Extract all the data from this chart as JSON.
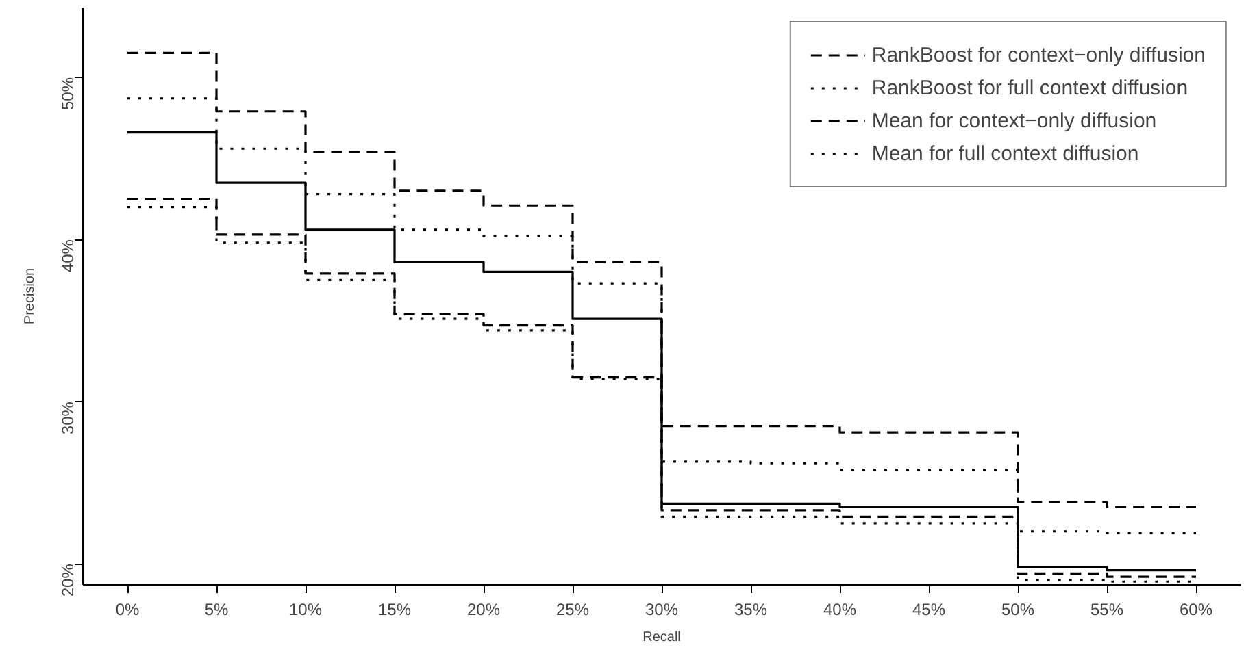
{
  "chart_data": {
    "type": "step",
    "xlabel": "Recall",
    "ylabel": "Precision",
    "x": [
      0,
      5,
      10,
      15,
      20,
      25,
      30,
      35,
      40,
      45,
      50,
      55,
      60
    ],
    "xlim": [
      -2.5,
      62.5
    ],
    "ylim": [
      18.7,
      54.3
    ],
    "xticks": [
      {
        "value": 0,
        "label": "0%"
      },
      {
        "value": 5,
        "label": "5%"
      },
      {
        "value": 10,
        "label": "10%"
      },
      {
        "value": 15,
        "label": "15%"
      },
      {
        "value": 20,
        "label": "20%"
      },
      {
        "value": 25,
        "label": "25%"
      },
      {
        "value": 30,
        "label": "30%"
      },
      {
        "value": 35,
        "label": "35%"
      },
      {
        "value": 40,
        "label": "40%"
      },
      {
        "value": 45,
        "label": "45%"
      },
      {
        "value": 50,
        "label": "50%"
      },
      {
        "value": 55,
        "label": "55%"
      },
      {
        "value": 60,
        "label": "60%"
      }
    ],
    "yticks": [
      {
        "value": 20,
        "label": "20%"
      },
      {
        "value": 30,
        "label": "30%"
      },
      {
        "value": 40,
        "label": "40%"
      },
      {
        "value": 50,
        "label": "50%"
      }
    ],
    "grid": false,
    "legend": "top right",
    "marker": "none",
    "series": [
      {
        "name": "RankBoost for context−only diffusion",
        "color": "#000000",
        "line_style": "dashed",
        "values": [
          51.5,
          47.9,
          45.4,
          43.0,
          42.1,
          38.6,
          28.5,
          28.5,
          28.1,
          28.1,
          23.8,
          23.5,
          23.5
        ]
      },
      {
        "name": "RankBoost for full context diffusion",
        "color": "#000000",
        "line_style": "dotted",
        "values": [
          48.7,
          45.6,
          42.8,
          40.6,
          40.2,
          37.3,
          26.3,
          26.2,
          25.8,
          25.8,
          22.0,
          21.9,
          21.9
        ]
      },
      {
        "color": "#000000",
        "line_style": "solid",
        "values": [
          46.6,
          43.5,
          40.6,
          38.6,
          38.0,
          35.1,
          23.7,
          23.7,
          23.5,
          23.5,
          19.8,
          19.6,
          19.6
        ]
      },
      {
        "name": "Mean for context−only diffusion",
        "color": "#000000",
        "line_style": "dashed",
        "values": [
          42.5,
          40.3,
          37.9,
          35.4,
          34.7,
          31.5,
          23.3,
          23.3,
          22.9,
          22.9,
          19.4,
          19.2,
          19.2
        ]
      },
      {
        "name": "Mean for full context diffusion",
        "color": "#000000",
        "line_style": "dotted",
        "values": [
          42.0,
          39.8,
          37.5,
          35.1,
          34.4,
          31.4,
          22.9,
          22.9,
          22.5,
          22.5,
          19.0,
          18.9,
          18.9
        ]
      }
    ]
  }
}
